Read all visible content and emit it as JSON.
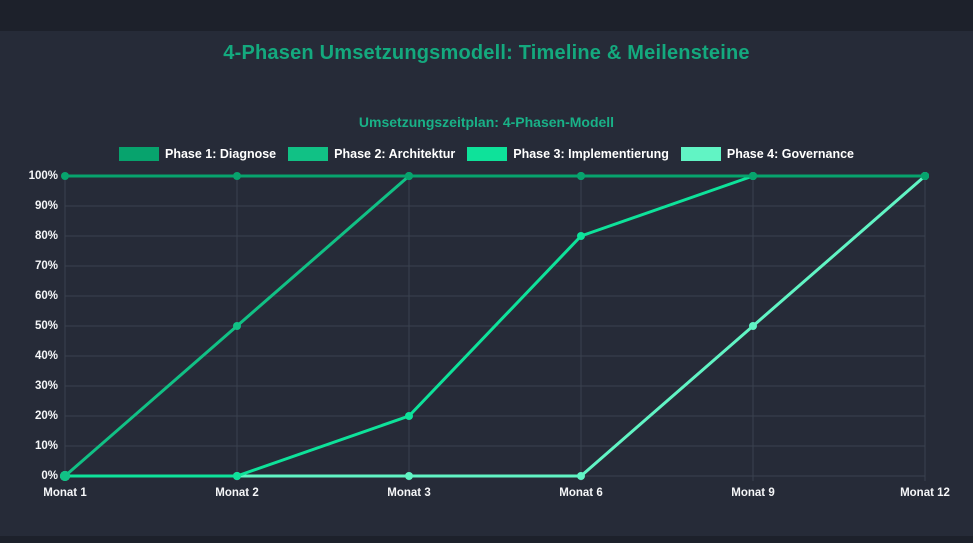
{
  "header": {
    "title": "4-Phasen Umsetzungsmodell: Timeline & Meilensteine"
  },
  "colors": {
    "page_background": "#1d212b",
    "card_background": "#262b38",
    "title_green": "#14a97e",
    "subtitle_green": "#19b187",
    "grid": "#3a414f",
    "tick_text": "#f5f6f8",
    "legend_text": "#ffffff"
  },
  "chart_data": {
    "type": "line",
    "title": "Umsetzungszeitplan: 4-Phasen-Modell",
    "categories": [
      "Monat 1",
      "Monat 2",
      "Monat 3",
      "Monat 6",
      "Monat 9",
      "Monat 12"
    ],
    "y_tick_labels": [
      "0%",
      "10%",
      "20%",
      "30%",
      "40%",
      "50%",
      "60%",
      "70%",
      "80%",
      "90%",
      "100%"
    ],
    "ylim": [
      0,
      100
    ],
    "xlabel": "",
    "ylabel": "",
    "grid": true,
    "legend_position": "top",
    "series": [
      {
        "name": "Phase 1: Diagnose",
        "color": "#07a36d",
        "values": [
          100,
          100,
          100,
          100,
          100,
          100
        ]
      },
      {
        "name": "Phase 2: Architektur",
        "color": "#11c185",
        "values": [
          0,
          50,
          100,
          100,
          100,
          100
        ]
      },
      {
        "name": "Phase 3: Implementierung",
        "color": "#0ee29a",
        "values": [
          0,
          0,
          20,
          80,
          100,
          100
        ]
      },
      {
        "name": "Phase 4: Governance",
        "color": "#61f4c4",
        "values": [
          0,
          0,
          0,
          0,
          50,
          100
        ]
      }
    ]
  }
}
